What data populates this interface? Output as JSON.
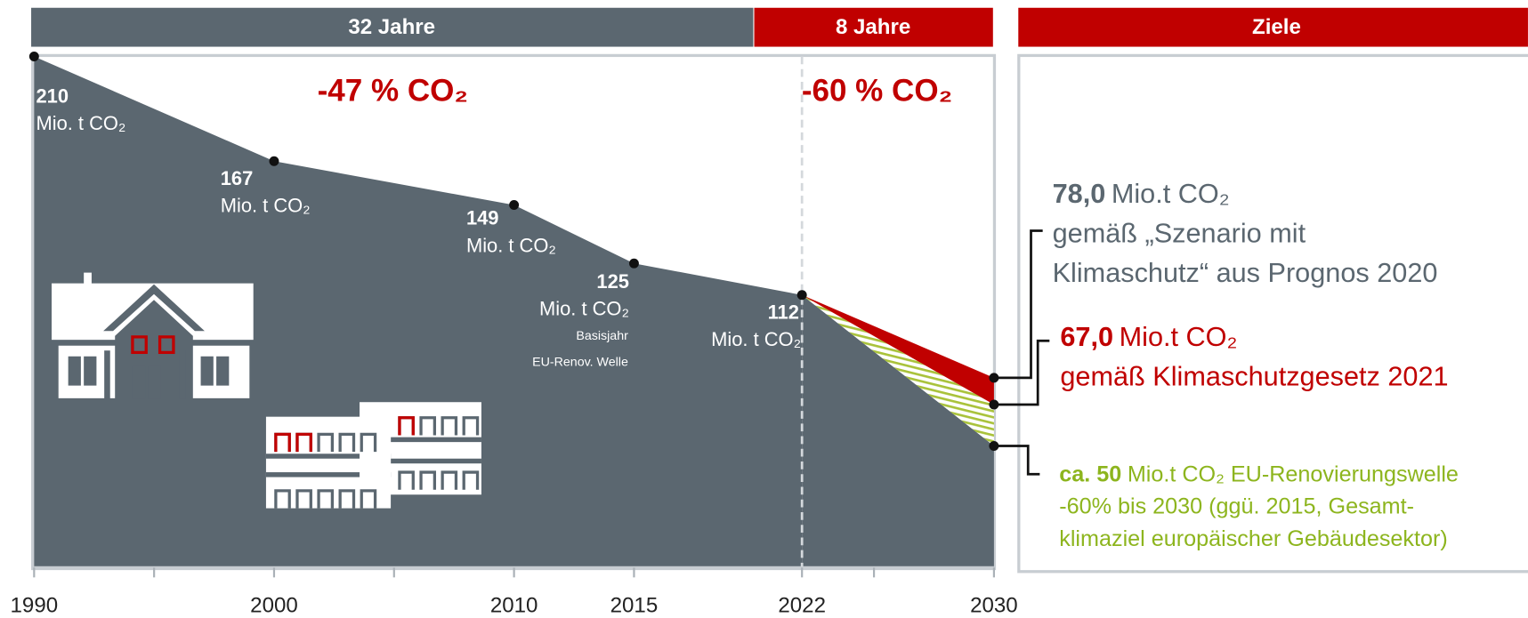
{
  "chart_data": {
    "type": "area",
    "period_labels": [
      "32 Jahre",
      "8 Jahre",
      "Ziele"
    ],
    "annotations": [
      "-47 % CO₂",
      "-60 %  CO₂"
    ],
    "xlim": [
      1990,
      2030
    ],
    "ylim": [
      0,
      210
    ],
    "xticks": [
      1990,
      2000,
      2010,
      2015,
      2022,
      2030
    ],
    "minor_xticks": [
      1995,
      2005,
      2025
    ],
    "history": {
      "x": [
        1990,
        2000,
        2010,
        2015,
        2022
      ],
      "values": [
        210,
        167,
        149,
        125,
        112
      ],
      "unit": "Mio. t CO₂",
      "color": "#5b6770"
    },
    "basisjahr_note": [
      "Basisjahr",
      "EU-Renov. Welle"
    ],
    "target_year": 2030,
    "targets": [
      {
        "value": 78,
        "value_label": "78,0",
        "unit": "Mio.t CO₂",
        "text": [
          "gemäß „Szenario mit",
          "Klimaschutz“ aus Prognos 2020"
        ],
        "color": "#5b6770"
      },
      {
        "value": 67,
        "value_label": "67,0",
        "unit": "Mio.t CO₂",
        "text": [
          "gemäß Klimaschutzgesetz 2021"
        ],
        "color": "#c00000"
      },
      {
        "value": 50,
        "value_label": "ca. 50",
        "unit": "Mio.t CO₂ EU-Renovierungswelle",
        "text": [
          "-60% bis 2030 (ggü. 2015, Gesamt-",
          "klimaziel europäischer Gebäudesektor)"
        ],
        "color": "#8db51e"
      }
    ]
  }
}
